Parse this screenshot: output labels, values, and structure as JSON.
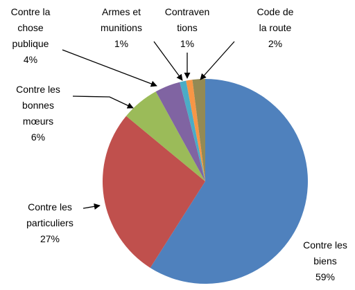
{
  "chart_data": {
    "type": "pie",
    "categories": [
      "Contre les\nbiens",
      "Contre les\nparticuliers",
      "Contre les\nbonnes\nmœurs",
      "Contre la\nchose\npublique",
      "Armes et\nmunitions",
      "Contraven\ntions",
      "Code de\nla route"
    ],
    "values": [
      59,
      27,
      6,
      4,
      1,
      1,
      2
    ],
    "value_labels": [
      "59%",
      "27%",
      "6%",
      "4%",
      "1%",
      "1%",
      "2%"
    ],
    "colors": [
      "#4f81bd",
      "#c0504d",
      "#9bbb59",
      "#8064a2",
      "#4bacc6",
      "#f79646",
      "#948a54"
    ]
  }
}
